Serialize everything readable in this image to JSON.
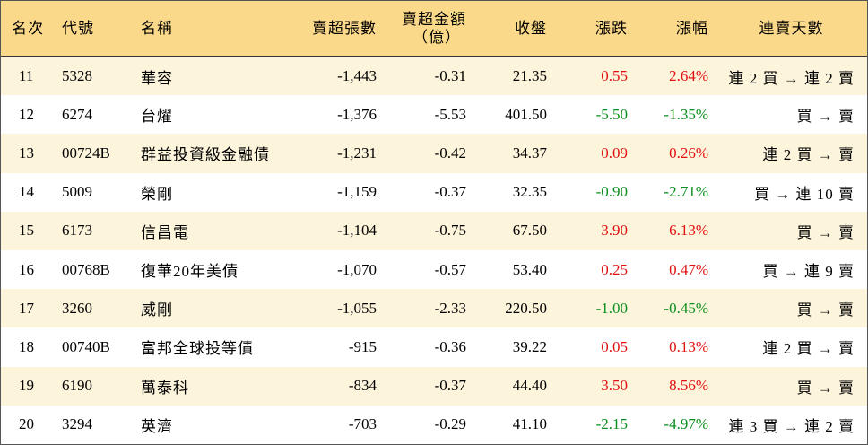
{
  "colors": {
    "header_bg": "#fbd98a",
    "stripe_bg": "#fdf4dc",
    "up": "#e01010",
    "down": "#0a8f1e"
  },
  "header": {
    "rank": "名次",
    "code": "代號",
    "name": "名稱",
    "shares": "賣超張數",
    "amount_line1": "賣超金額",
    "amount_line2": "（億）",
    "close": "收盤",
    "change": "漲跌",
    "pct": "漲幅",
    "streak": "連賣天數"
  },
  "rows": [
    {
      "rank": "11",
      "code": "5328",
      "name": "華容",
      "shares": "-1,443",
      "amount": "-0.31",
      "close": "21.35",
      "change": "0.55",
      "pct": "2.64%",
      "dir": "up",
      "streak": "連 2 買 → 連 2 賣"
    },
    {
      "rank": "12",
      "code": "6274",
      "name": "台燿",
      "shares": "-1,376",
      "amount": "-5.53",
      "close": "401.50",
      "change": "-5.50",
      "pct": "-1.35%",
      "dir": "down",
      "streak": "買 → 賣"
    },
    {
      "rank": "13",
      "code": "00724B",
      "name": "群益投資級金融債",
      "shares": "-1,231",
      "amount": "-0.42",
      "close": "34.37",
      "change": "0.09",
      "pct": "0.26%",
      "dir": "up",
      "streak": "連 2 買 → 賣"
    },
    {
      "rank": "14",
      "code": "5009",
      "name": "榮剛",
      "shares": "-1,159",
      "amount": "-0.37",
      "close": "32.35",
      "change": "-0.90",
      "pct": "-2.71%",
      "dir": "down",
      "streak": "買 → 連 10 賣"
    },
    {
      "rank": "15",
      "code": "6173",
      "name": "信昌電",
      "shares": "-1,104",
      "amount": "-0.75",
      "close": "67.50",
      "change": "3.90",
      "pct": "6.13%",
      "dir": "up",
      "streak": "買 → 賣"
    },
    {
      "rank": "16",
      "code": "00768B",
      "name": "復華20年美債",
      "shares": "-1,070",
      "amount": "-0.57",
      "close": "53.40",
      "change": "0.25",
      "pct": "0.47%",
      "dir": "up",
      "streak": "買 → 連 9 賣"
    },
    {
      "rank": "17",
      "code": "3260",
      "name": "威剛",
      "shares": "-1,055",
      "amount": "-2.33",
      "close": "220.50",
      "change": "-1.00",
      "pct": "-0.45%",
      "dir": "down",
      "streak": "買 → 賣"
    },
    {
      "rank": "18",
      "code": "00740B",
      "name": "富邦全球投等債",
      "shares": "-915",
      "amount": "-0.36",
      "close": "39.22",
      "change": "0.05",
      "pct": "0.13%",
      "dir": "up",
      "streak": "連 2 買 → 賣"
    },
    {
      "rank": "19",
      "code": "6190",
      "name": "萬泰科",
      "shares": "-834",
      "amount": "-0.37",
      "close": "44.40",
      "change": "3.50",
      "pct": "8.56%",
      "dir": "up",
      "streak": "買 → 賣"
    },
    {
      "rank": "20",
      "code": "3294",
      "name": "英濟",
      "shares": "-703",
      "amount": "-0.29",
      "close": "41.10",
      "change": "-2.15",
      "pct": "-4.97%",
      "dir": "down",
      "streak": "連 3 買 → 連 2 賣"
    }
  ]
}
